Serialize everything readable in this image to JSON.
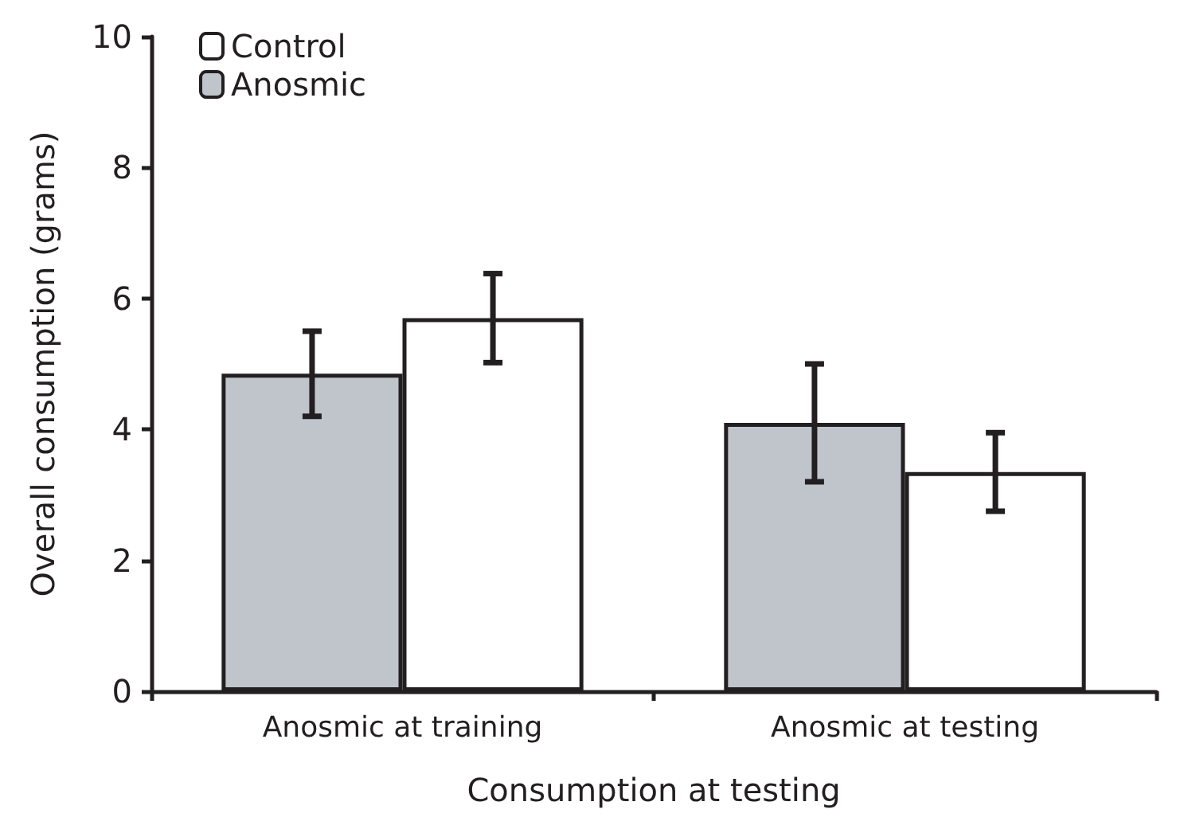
{
  "chart_data": {
    "type": "bar",
    "xlabel": "Consumption at testing",
    "ylabel": "Overall consumption (grams)",
    "categories": [
      "Anosmic at training",
      "Anosmic at testing"
    ],
    "series": [
      {
        "name": "Anosmic",
        "color": "#c0c5cc",
        "values": [
          4.85,
          4.1
        ],
        "errors": [
          0.65,
          0.9
        ]
      },
      {
        "name": "Control",
        "color": "#ffffff",
        "values": [
          5.7,
          3.35
        ],
        "errors": [
          0.68,
          0.6
        ]
      }
    ],
    "ylim": [
      0,
      10
    ],
    "yticks": [
      0,
      2,
      4,
      6,
      8,
      10
    ],
    "grid": false,
    "legend": "top left"
  }
}
